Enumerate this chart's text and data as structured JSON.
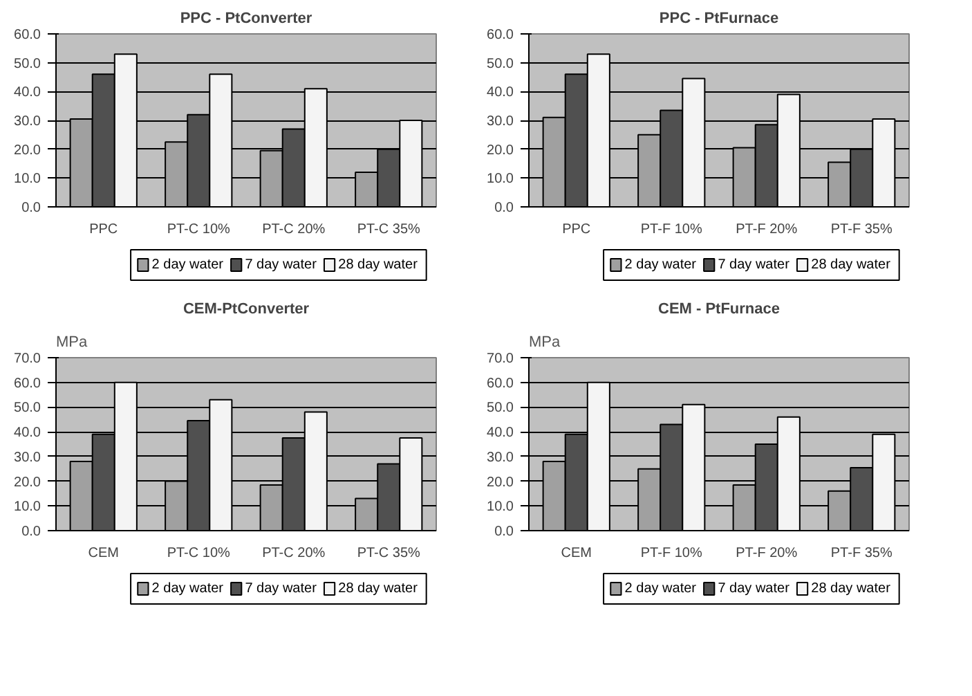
{
  "chart_data": [
    {
      "type": "bar",
      "title": "PPC - PtConverter",
      "categories": [
        "PPC",
        "PT-C 10%",
        "PT-C 20%",
        "PT-C 35%"
      ],
      "series": [
        {
          "name": "2 day water",
          "color": "#a0a0a0",
          "values": [
            30.5,
            22.5,
            19.5,
            12
          ]
        },
        {
          "name": "7 day water",
          "color": "#505050",
          "values": [
            46,
            32,
            27,
            20
          ]
        },
        {
          "name": "28 day water",
          "color": "#f4f4f4",
          "values": [
            53,
            46,
            41,
            30
          ]
        }
      ],
      "ylim": [
        0,
        60
      ],
      "yticks": [
        {
          "value": 0,
          "label": "0.0"
        },
        {
          "value": 10,
          "label": "10.0"
        },
        {
          "value": 20,
          "label": "20.0"
        },
        {
          "value": 30,
          "label": "30.0"
        },
        {
          "value": 40,
          "label": "40.0"
        },
        {
          "value": 50,
          "label": "50.0"
        },
        {
          "value": 60,
          "label": "60.0"
        }
      ],
      "grid": "y",
      "legend": "bottom"
    },
    {
      "type": "bar",
      "title": "PPC - PtFurnace",
      "categories": [
        "PPC",
        "PT-F 10%",
        "PT-F 20%",
        "PT-F 35%"
      ],
      "series": [
        {
          "name": "2 day water",
          "color": "#a0a0a0",
          "values": [
            31,
            25,
            20.5,
            15.5
          ]
        },
        {
          "name": "7 day water",
          "color": "#505050",
          "values": [
            46,
            33.5,
            28.5,
            20
          ]
        },
        {
          "name": "28 day water",
          "color": "#f4f4f4",
          "values": [
            53,
            44.5,
            39,
            30.5
          ]
        }
      ],
      "ylim": [
        0,
        60
      ],
      "yticks": [
        {
          "value": 0,
          "label": "0.0"
        },
        {
          "value": 10,
          "label": "10.0"
        },
        {
          "value": 20,
          "label": "20.0"
        },
        {
          "value": 30,
          "label": "30.0"
        },
        {
          "value": 40,
          "label": "40.0"
        },
        {
          "value": 50,
          "label": "50.0"
        },
        {
          "value": 60,
          "label": "60.0"
        }
      ],
      "grid": "y",
      "legend": "bottom"
    },
    {
      "type": "bar",
      "title": "CEM-PtConverter",
      "ylabel": "MPa",
      "categories": [
        "CEM",
        "PT-C 10%",
        "PT-C 20%",
        "PT-C 35%"
      ],
      "series": [
        {
          "name": "2 day water",
          "color": "#a0a0a0",
          "values": [
            28,
            20,
            18.5,
            13
          ]
        },
        {
          "name": "7 day water",
          "color": "#505050",
          "values": [
            39,
            44.5,
            37.5,
            27
          ]
        },
        {
          "name": "28 day water",
          "color": "#f4f4f4",
          "values": [
            60,
            53,
            48,
            37.5
          ]
        }
      ],
      "ylim": [
        0,
        70
      ],
      "yticks": [
        {
          "value": 0,
          "label": "0.0"
        },
        {
          "value": 10,
          "label": "10.0"
        },
        {
          "value": 20,
          "label": "20.0"
        },
        {
          "value": 30,
          "label": "30.0"
        },
        {
          "value": 40,
          "label": "40.0"
        },
        {
          "value": 50,
          "label": "50.0"
        },
        {
          "value": 60,
          "label": "60.0"
        },
        {
          "value": 70,
          "label": "70.0"
        }
      ],
      "grid": "y",
      "legend": "bottom"
    },
    {
      "type": "bar",
      "title": "CEM - PtFurnace",
      "ylabel": "MPa",
      "categories": [
        "CEM",
        "PT-F 10%",
        "PT-F 20%",
        "PT-F 35%"
      ],
      "series": [
        {
          "name": "2 day water",
          "color": "#a0a0a0",
          "values": [
            28,
            25,
            18.5,
            16
          ]
        },
        {
          "name": "7 day water",
          "color": "#505050",
          "values": [
            39,
            43,
            35,
            25.5
          ]
        },
        {
          "name": "28 day water",
          "color": "#f4f4f4",
          "values": [
            60,
            51,
            46,
            39
          ]
        }
      ],
      "ylim": [
        0,
        70
      ],
      "yticks": [
        {
          "value": 0,
          "label": "0.0"
        },
        {
          "value": 10,
          "label": "10.0"
        },
        {
          "value": 20,
          "label": "20.0"
        },
        {
          "value": 30,
          "label": "30.0"
        },
        {
          "value": 40,
          "label": "40.0"
        },
        {
          "value": 50,
          "label": "50.0"
        },
        {
          "value": 60,
          "label": "60.0"
        },
        {
          "value": 70,
          "label": "70.0"
        }
      ],
      "grid": "y",
      "legend": "bottom"
    }
  ]
}
